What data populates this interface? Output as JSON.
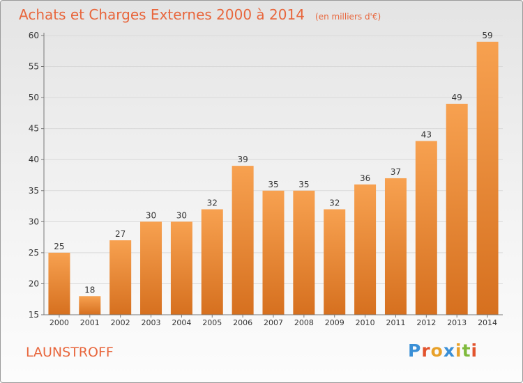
{
  "page": {
    "title": "Achats et Charges Externes 2000 à 2014",
    "unit": "(en milliers d'€)",
    "commune": "LAUNSTROFF",
    "logo": {
      "letters": [
        "P",
        "r",
        "o",
        "x",
        "i",
        "t",
        "i"
      ],
      "colors": [
        "#3a8fd6",
        "#e2532d",
        "#e8a12a",
        "#3a8fd6",
        "#e8a12a",
        "#7fba3c",
        "#e2532d"
      ]
    }
  },
  "colors": {
    "title": "#e8663c",
    "bar_light": "#f7a150",
    "bar_dark": "#d6701f",
    "grid": "#d9d9d9",
    "text": "#333333"
  },
  "chart_data": {
    "type": "bar",
    "title": "Achats et Charges Externes 2000 à 2014",
    "subtitle": "(en milliers d'€)",
    "categories": [
      "2000",
      "2001",
      "2002",
      "2003",
      "2004",
      "2005",
      "2006",
      "2007",
      "2008",
      "2009",
      "2010",
      "2011",
      "2012",
      "2013",
      "2014"
    ],
    "values": [
      25,
      18,
      27,
      30,
      30,
      32,
      39,
      35,
      35,
      32,
      36,
      37,
      43,
      49,
      59
    ],
    "ylim": [
      15,
      60
    ],
    "yticks": [
      15,
      20,
      25,
      30,
      35,
      40,
      45,
      50,
      55,
      60
    ],
    "grid": true,
    "xlabel": "",
    "ylabel": ""
  }
}
